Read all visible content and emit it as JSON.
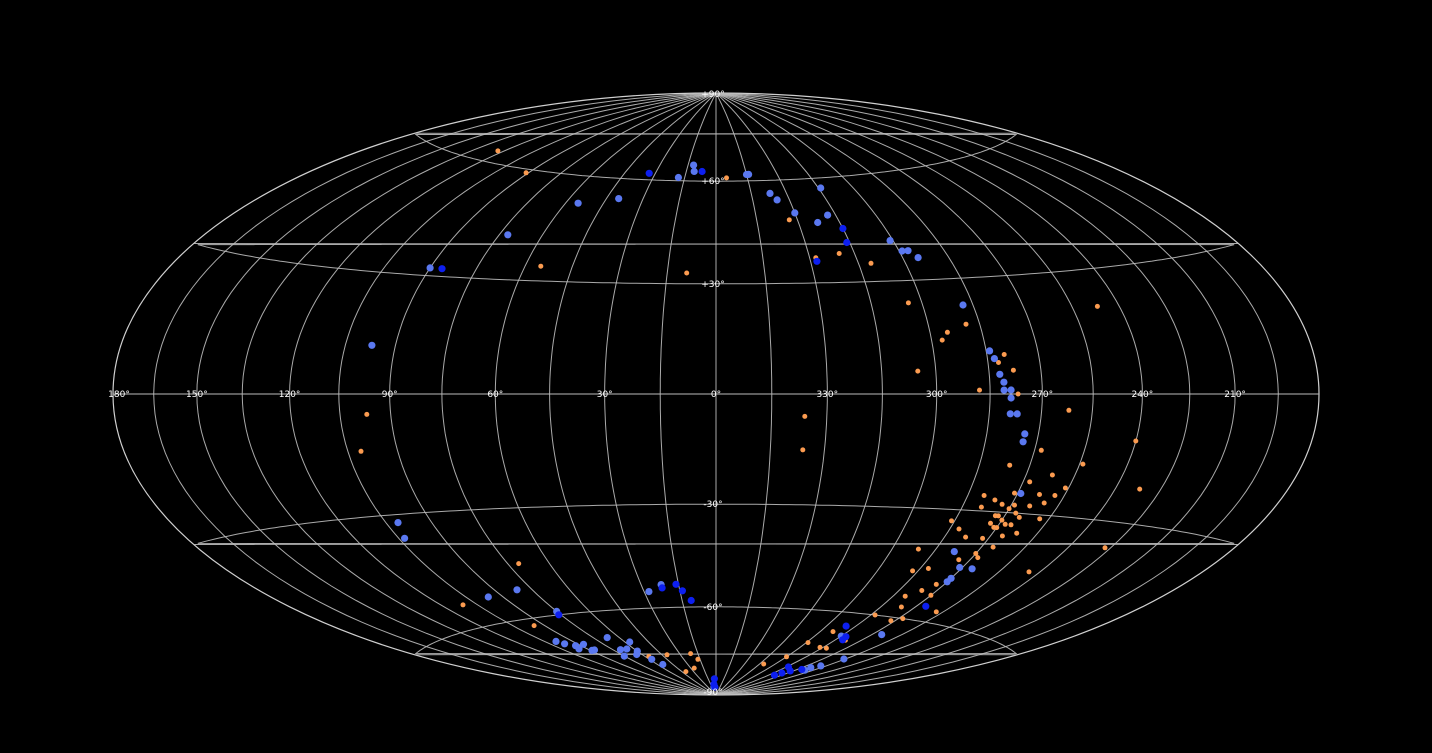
{
  "chart_data": {
    "type": "scatter",
    "projection": "aitoff-hammer all-sky",
    "grid": true,
    "lon_direction": "increasing to the left",
    "lon_range": [
      0,
      360
    ],
    "lat_range": [
      -90,
      90
    ],
    "lon_ticks": [
      {
        "lon": 180,
        "label": "180°"
      },
      {
        "lon": 150,
        "label": "150°"
      },
      {
        "lon": 120,
        "label": "120°"
      },
      {
        "lon": 90,
        "label": "90°"
      },
      {
        "lon": 60,
        "label": "60°"
      },
      {
        "lon": 30,
        "label": "30°"
      },
      {
        "lon": 0,
        "label": "0°"
      },
      {
        "lon": 330,
        "label": "330°"
      },
      {
        "lon": 300,
        "label": "300°"
      },
      {
        "lon": 270,
        "label": "270°"
      },
      {
        "lon": 240,
        "label": "240°"
      },
      {
        "lon": 210,
        "label": "210°"
      }
    ],
    "lat_ticks": [
      {
        "lat": 90,
        "label": "+90°"
      },
      {
        "lat": 60,
        "label": "+60°"
      },
      {
        "lat": 30,
        "label": "+30°"
      },
      {
        "lat": -30,
        "label": "-30°"
      },
      {
        "lat": -60,
        "label": "-60°"
      },
      {
        "lat": -90,
        "label": "-90°"
      }
    ],
    "series": [
      {
        "color": "#fb9b50",
        "marker_size": "small",
        "points": [
          [
            123,
            63
          ],
          [
            91,
            59
          ],
          [
            55,
            34
          ],
          [
            9,
            33
          ],
          [
            355,
            61
          ],
          [
            333,
            48
          ],
          [
            328,
            37
          ],
          [
            320,
            38
          ],
          [
            311,
            35
          ],
          [
            304,
            24
          ],
          [
            297,
            14
          ],
          [
            295,
            16
          ],
          [
            289,
            18
          ],
          [
            282,
            8
          ],
          [
            280,
            10
          ],
          [
            278,
            6
          ],
          [
            305,
            6
          ],
          [
            288,
            1
          ],
          [
            277,
            0
          ],
          [
            262,
            -4
          ],
          [
            254,
            -17
          ],
          [
            280,
            -26
          ],
          [
            276,
            -27
          ],
          [
            273,
            -28
          ],
          [
            270,
            -29
          ],
          [
            267,
            -30
          ],
          [
            264,
            -28
          ],
          [
            260,
            -27
          ],
          [
            258,
            -25
          ],
          [
            256,
            -23
          ],
          [
            262,
            -20
          ],
          [
            262,
            -35
          ],
          [
            266,
            -36
          ],
          [
            270,
            -34
          ],
          [
            272,
            -37
          ],
          [
            268,
            -42
          ],
          [
            274,
            -43
          ],
          [
            273,
            -50
          ],
          [
            276,
            -52
          ],
          [
            280,
            -54
          ],
          [
            270,
            -53
          ],
          [
            276,
            -57
          ],
          [
            272,
            -61
          ],
          [
            268,
            -60
          ],
          [
            258,
            -57
          ],
          [
            283,
            -60
          ],
          [
            279,
            -68
          ],
          [
            282,
            -71
          ],
          [
            287,
            -71
          ],
          [
            293,
            -66
          ],
          [
            299,
            -70
          ],
          [
            300,
            -75
          ],
          [
            311,
            -78
          ],
          [
            263,
            -78
          ],
          [
            244,
            -44
          ],
          [
            227,
            -36
          ],
          [
            232,
            -22
          ],
          [
            247,
            21
          ],
          [
            240,
            -11
          ],
          [
            282,
            -35
          ],
          [
            286,
            -33
          ],
          [
            278,
            -37
          ],
          [
            282,
            -46
          ],
          [
            287,
            -47
          ],
          [
            271,
            -45
          ],
          [
            265,
            -31
          ],
          [
            258,
            -31
          ],
          [
            268,
            -22
          ],
          [
            279,
            -29
          ],
          [
            266,
            -39
          ],
          [
            270,
            -41
          ],
          [
            273,
            -31
          ],
          [
            263,
            -25
          ],
          [
            271,
            -25
          ],
          [
            276,
            -18
          ],
          [
            268,
            -14
          ],
          [
            291,
            -41
          ],
          [
            336,
            -6
          ],
          [
            336,
            -15
          ],
          [
            26,
            -80
          ],
          [
            41,
            -75
          ],
          [
            57,
            -75
          ],
          [
            95,
            -62
          ],
          [
            111,
            -54
          ],
          [
            97,
            -5
          ],
          [
            101,
            -14
          ],
          [
            71,
            -45
          ],
          [
            17,
            -77
          ],
          [
            21,
            -75
          ],
          [
            40,
            -81
          ],
          [
            272,
            -31
          ],
          [
            270,
            -32
          ],
          [
            268,
            -33
          ],
          [
            266,
            -33
          ],
          [
            273,
            -33
          ],
          [
            271,
            -34
          ],
          [
            269,
            -28
          ]
        ]
      },
      {
        "color": "#5a78f0",
        "marker_size": "large",
        "points": [
          [
            18,
            61
          ],
          [
            40,
            54
          ],
          [
            55,
            52
          ],
          [
            72,
            42
          ],
          [
            90,
            32
          ],
          [
            97,
            12
          ],
          [
            101,
            -32
          ],
          [
            103,
            -36
          ],
          [
            96,
            -53
          ],
          [
            81,
            -52
          ],
          [
            75,
            -59
          ],
          [
            67,
            -68
          ],
          [
            60,
            -73
          ],
          [
            64,
            -74
          ],
          [
            58,
            -76
          ],
          [
            55,
            -78
          ],
          [
            75,
            -74
          ],
          [
            87,
            -71
          ],
          [
            89,
            -71
          ],
          [
            93,
            -69
          ],
          [
            95,
            -70
          ],
          [
            97,
            -68
          ],
          [
            99,
            -67
          ],
          [
            11,
            63
          ],
          [
            12,
            65
          ],
          [
            345,
            62
          ],
          [
            344,
            62
          ],
          [
            337,
            56
          ],
          [
            335,
            54
          ],
          [
            330,
            50
          ],
          [
            323,
            47
          ],
          [
            318,
            49
          ],
          [
            314,
            57
          ],
          [
            301,
            41
          ],
          [
            299,
            38
          ],
          [
            297,
            38
          ],
          [
            295,
            36
          ],
          [
            288,
            23
          ],
          [
            284,
            11
          ],
          [
            283,
            9
          ],
          [
            282,
            5
          ],
          [
            281,
            3
          ],
          [
            281,
            1
          ],
          [
            279,
            1
          ],
          [
            279,
            -1
          ],
          [
            279,
            -5
          ],
          [
            277,
            -5
          ],
          [
            274,
            -12
          ],
          [
            274,
            -10
          ],
          [
            269,
            -25
          ],
          [
            266,
            -45
          ],
          [
            270,
            -49
          ],
          [
            265,
            -65
          ],
          [
            285,
            -67
          ],
          [
            262,
            -78
          ],
          [
            256,
            -73
          ],
          [
            263,
            -77
          ],
          [
            259,
            -76
          ],
          [
            22,
            -53
          ],
          [
            28,
            -55
          ],
          [
            8,
            -87
          ],
          [
            5,
            -87
          ],
          [
            57,
            -70
          ],
          [
            87,
            -69
          ],
          [
            65,
            -72
          ],
          [
            70,
            -72
          ],
          [
            270,
            -48
          ],
          [
            271,
            -45
          ],
          [
            278,
            -41
          ]
        ]
      },
      {
        "color": "#0d1ff0",
        "marker_size": "large",
        "points": [
          [
            33,
            62
          ],
          [
            7,
            63
          ],
          [
            86,
            32
          ],
          [
            76,
            -60
          ],
          [
            328,
            36
          ],
          [
            316,
            41
          ],
          [
            315,
            45
          ],
          [
            266,
            -56
          ],
          [
            282,
            -67
          ],
          [
            290,
            -64
          ],
          [
            266,
            -78
          ],
          [
            281,
            -68
          ],
          [
            276,
            -80
          ],
          [
            278,
            -81
          ],
          [
            273,
            -79
          ],
          [
            283,
            -78
          ],
          [
            4,
            -87
          ],
          [
            3,
            -84
          ],
          [
            6,
            -86
          ],
          [
            22,
            -54
          ],
          [
            16,
            -53
          ],
          [
            14,
            -55
          ],
          [
            11,
            -58
          ]
        ]
      }
    ]
  }
}
